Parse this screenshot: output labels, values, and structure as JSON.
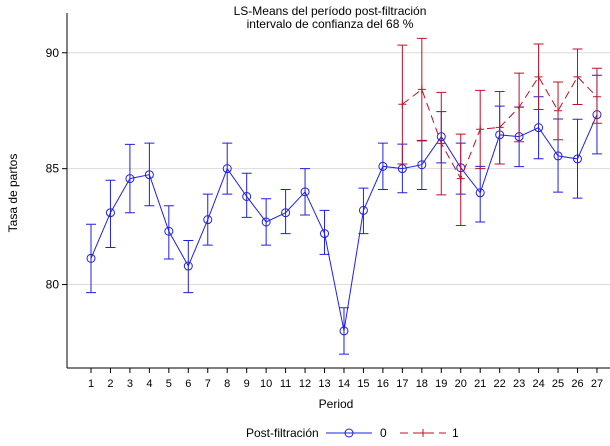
{
  "chart_data": {
    "type": "line",
    "title": "LS-Means del período post-filtración",
    "subtitle": "intervalo de confianza del 68 %",
    "xlabel": "Period",
    "ylabel": "Tasa de partos",
    "ylim": [
      76.4,
      91.5
    ],
    "yticks": [
      80,
      85,
      90
    ],
    "x": [
      1,
      2,
      3,
      4,
      5,
      6,
      7,
      8,
      9,
      10,
      11,
      12,
      13,
      14,
      15,
      16,
      17,
      18,
      19,
      20,
      21,
      22,
      23,
      24,
      25,
      26,
      27
    ],
    "grid": "horizontal",
    "legend": {
      "title": "Post-filtración",
      "placement": "bottom"
    },
    "series": [
      {
        "name": "0",
        "color": "#2020e0",
        "x": [
          1,
          2,
          3,
          4,
          5,
          6,
          7,
          8,
          9,
          10,
          11,
          12,
          13,
          14,
          15,
          16,
          17,
          18,
          19,
          20,
          21,
          22,
          23,
          24,
          25,
          26,
          27
        ],
        "values": [
          81.13,
          83.1,
          84.57,
          84.74,
          82.3,
          80.8,
          82.8,
          85.0,
          83.8,
          82.7,
          83.1,
          84.0,
          82.2,
          78.0,
          83.2,
          85.1,
          85.0,
          85.17,
          86.38,
          85.04,
          83.96,
          86.46,
          86.38,
          86.77,
          85.55,
          85.42,
          87.33
        ],
        "upper": [
          82.6,
          84.5,
          86.05,
          86.1,
          83.4,
          81.9,
          83.9,
          86.1,
          84.8,
          83.7,
          84.1,
          85.0,
          83.2,
          79.0,
          84.16,
          86.1,
          86.06,
          86.2,
          87.46,
          86.1,
          85.1,
          87.7,
          87.66,
          88.1,
          87.14,
          87.13,
          89.03
        ],
        "lower": [
          79.65,
          81.6,
          83.1,
          83.4,
          81.1,
          79.65,
          81.7,
          83.9,
          82.9,
          81.7,
          82.2,
          83.0,
          81.3,
          77.0,
          82.2,
          84.1,
          83.96,
          84.1,
          85.25,
          83.9,
          82.7,
          85.2,
          85.09,
          85.43,
          83.99,
          83.73,
          85.64
        ]
      },
      {
        "name": "1",
        "color": "#c0102a",
        "x": [
          17,
          18,
          19,
          20,
          21,
          22,
          23,
          24,
          25,
          26,
          27
        ],
        "values": [
          87.78,
          88.42,
          86.09,
          84.57,
          86.7,
          86.78,
          87.65,
          88.96,
          87.5,
          88.96,
          88.1
        ],
        "upper": [
          90.33,
          90.62,
          88.29,
          86.49,
          88.38,
          88.33,
          89.12,
          90.38,
          88.74,
          90.16,
          89.33
        ],
        "lower": [
          85.2,
          86.22,
          83.87,
          82.55,
          85.0,
          85.2,
          86.16,
          87.55,
          86.25,
          87.77,
          86.96
        ]
      }
    ]
  }
}
